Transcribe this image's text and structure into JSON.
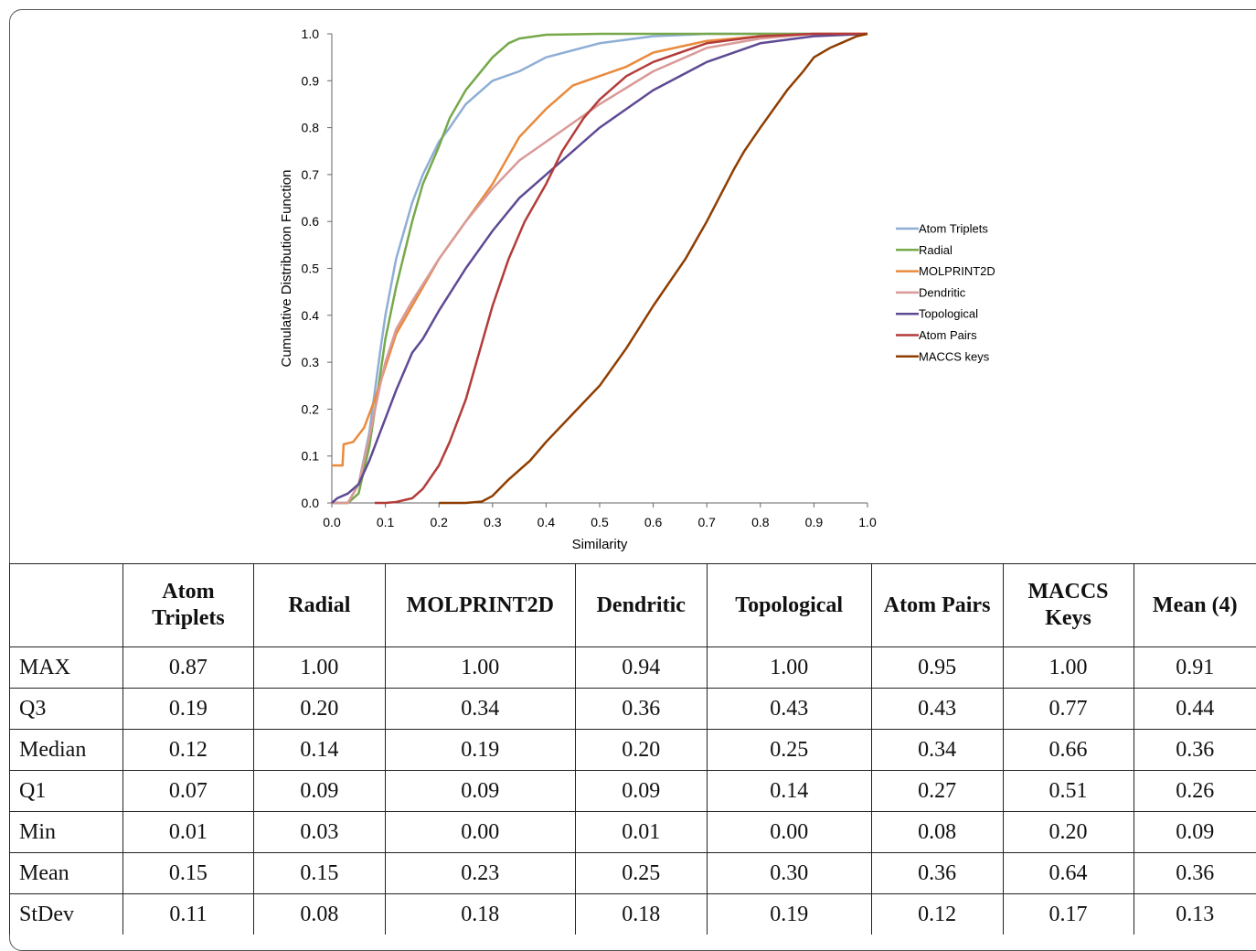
{
  "chart_data": {
    "type": "line",
    "xlabel": "Similarity",
    "ylabel": "Cumulative Distribution Function",
    "xlim": [
      0,
      1
    ],
    "ylim": [
      0,
      1
    ],
    "x_ticks": [
      "0.0",
      "0.1",
      "0.2",
      "0.3",
      "0.4",
      "0.5",
      "0.6",
      "0.7",
      "0.8",
      "0.9",
      "1.0"
    ],
    "y_ticks": [
      "0.0",
      "0.1",
      "0.2",
      "0.3",
      "0.4",
      "0.5",
      "0.6",
      "0.7",
      "0.8",
      "0.9",
      "1.0"
    ],
    "grid": false,
    "legend_position": "right",
    "series": [
      {
        "name": "Atom Triplets",
        "color": "#8eaed6",
        "x": [
          0.0,
          0.03,
          0.05,
          0.07,
          0.09,
          0.1,
          0.12,
          0.15,
          0.17,
          0.2,
          0.22,
          0.25,
          0.3,
          0.35,
          0.4,
          0.5,
          0.6,
          0.7,
          0.8,
          0.9,
          1.0
        ],
        "y": [
          0.0,
          0.0,
          0.04,
          0.15,
          0.32,
          0.4,
          0.52,
          0.64,
          0.7,
          0.77,
          0.8,
          0.85,
          0.9,
          0.92,
          0.95,
          0.98,
          0.995,
          1.0,
          1.0,
          1.0,
          1.0
        ]
      },
      {
        "name": "Radial",
        "color": "#77a84a",
        "x": [
          0.0,
          0.03,
          0.05,
          0.07,
          0.09,
          0.1,
          0.12,
          0.15,
          0.17,
          0.2,
          0.22,
          0.25,
          0.3,
          0.33,
          0.35,
          0.4,
          0.5,
          0.6,
          1.0
        ],
        "y": [
          0.0,
          0.0,
          0.02,
          0.12,
          0.27,
          0.35,
          0.46,
          0.6,
          0.68,
          0.76,
          0.82,
          0.88,
          0.95,
          0.98,
          0.99,
          0.998,
          1.0,
          1.0,
          1.0
        ]
      },
      {
        "name": "MOLPRINT2D",
        "color": "#e98a3c",
        "x": [
          0.0,
          0.002,
          0.02,
          0.022,
          0.04,
          0.06,
          0.08,
          0.1,
          0.12,
          0.15,
          0.2,
          0.25,
          0.3,
          0.35,
          0.4,
          0.45,
          0.5,
          0.55,
          0.6,
          0.7,
          0.8,
          0.9,
          1.0
        ],
        "y": [
          0.08,
          0.08,
          0.08,
          0.125,
          0.13,
          0.16,
          0.22,
          0.29,
          0.36,
          0.42,
          0.52,
          0.6,
          0.68,
          0.78,
          0.84,
          0.89,
          0.91,
          0.93,
          0.96,
          0.985,
          0.995,
          1.0,
          1.0
        ]
      },
      {
        "name": "Dendritic",
        "color": "#d99a98",
        "x": [
          0.0,
          0.03,
          0.05,
          0.07,
          0.09,
          0.1,
          0.12,
          0.15,
          0.2,
          0.25,
          0.3,
          0.35,
          0.4,
          0.45,
          0.5,
          0.6,
          0.7,
          0.8,
          0.9,
          1.0
        ],
        "y": [
          0.0,
          0.0,
          0.04,
          0.14,
          0.25,
          0.3,
          0.37,
          0.43,
          0.52,
          0.6,
          0.67,
          0.73,
          0.77,
          0.81,
          0.85,
          0.92,
          0.97,
          0.99,
          1.0,
          1.0
        ]
      },
      {
        "name": "Topological",
        "color": "#5e4a94",
        "x": [
          0.0,
          0.01,
          0.03,
          0.05,
          0.07,
          0.09,
          0.1,
          0.12,
          0.15,
          0.17,
          0.2,
          0.25,
          0.3,
          0.35,
          0.4,
          0.45,
          0.5,
          0.6,
          0.7,
          0.8,
          0.9,
          1.0
        ],
        "y": [
          0.0,
          0.01,
          0.02,
          0.04,
          0.09,
          0.15,
          0.18,
          0.24,
          0.32,
          0.35,
          0.41,
          0.5,
          0.58,
          0.65,
          0.7,
          0.75,
          0.8,
          0.88,
          0.94,
          0.98,
          0.995,
          1.0
        ]
      },
      {
        "name": "Atom Pairs",
        "color": "#b33c3a",
        "x": [
          0.08,
          0.1,
          0.12,
          0.15,
          0.17,
          0.2,
          0.22,
          0.25,
          0.27,
          0.3,
          0.33,
          0.36,
          0.4,
          0.43,
          0.47,
          0.5,
          0.55,
          0.6,
          0.7,
          0.8,
          0.9,
          1.0
        ],
        "y": [
          0.0,
          0.0,
          0.002,
          0.01,
          0.03,
          0.08,
          0.13,
          0.22,
          0.3,
          0.42,
          0.52,
          0.6,
          0.68,
          0.75,
          0.82,
          0.86,
          0.91,
          0.94,
          0.98,
          0.995,
          1.0,
          1.0
        ]
      },
      {
        "name": "MACCS keys",
        "color": "#8f3d00",
        "x": [
          0.2,
          0.25,
          0.28,
          0.3,
          0.33,
          0.37,
          0.4,
          0.45,
          0.5,
          0.55,
          0.6,
          0.66,
          0.7,
          0.75,
          0.77,
          0.8,
          0.85,
          0.88,
          0.9,
          0.93,
          0.95,
          0.98,
          1.0
        ],
        "y": [
          0.0,
          0.0,
          0.003,
          0.015,
          0.05,
          0.09,
          0.13,
          0.19,
          0.25,
          0.33,
          0.42,
          0.52,
          0.6,
          0.71,
          0.75,
          0.8,
          0.88,
          0.92,
          0.95,
          0.97,
          0.98,
          0.995,
          1.0
        ]
      }
    ]
  },
  "table": {
    "headers": [
      "",
      "Atom Triplets",
      "Radial",
      "MOLPRINT2D",
      "Dendritic",
      "Topological",
      "Atom Pairs",
      "MACCS Keys",
      "Mean (4)"
    ],
    "rows": [
      [
        "MAX",
        "0.87",
        "1.00",
        "1.00",
        "0.94",
        "1.00",
        "0.95",
        "1.00",
        "0.91"
      ],
      [
        "Q3",
        "0.19",
        "0.20",
        "0.34",
        "0.36",
        "0.43",
        "0.43",
        "0.77",
        "0.44"
      ],
      [
        "Median",
        "0.12",
        "0.14",
        "0.19",
        "0.20",
        "0.25",
        "0.34",
        "0.66",
        "0.36"
      ],
      [
        "Q1",
        "0.07",
        "0.09",
        "0.09",
        "0.09",
        "0.14",
        "0.27",
        "0.51",
        "0.26"
      ],
      [
        "Min",
        "0.01",
        "0.03",
        "0.00",
        "0.01",
        "0.00",
        "0.08",
        "0.20",
        "0.09"
      ],
      [
        "Mean",
        "0.15",
        "0.15",
        "0.23",
        "0.25",
        "0.30",
        "0.36",
        "0.64",
        "0.36"
      ],
      [
        "StDev",
        "0.11",
        "0.08",
        "0.18",
        "0.18",
        "0.19",
        "0.12",
        "0.17",
        "0.13"
      ]
    ]
  }
}
